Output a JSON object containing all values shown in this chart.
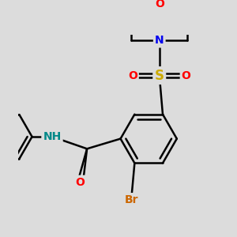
{
  "bg_color": "#dcdcdc",
  "bond_color": "#000000",
  "bond_width": 1.8,
  "colors": {
    "O": "#ff0000",
    "N": "#0000ee",
    "S": "#ccaa00",
    "Br": "#cc6600",
    "NH": "#008888",
    "C": "#000000"
  },
  "font_size": 10,
  "font_size_small": 9
}
